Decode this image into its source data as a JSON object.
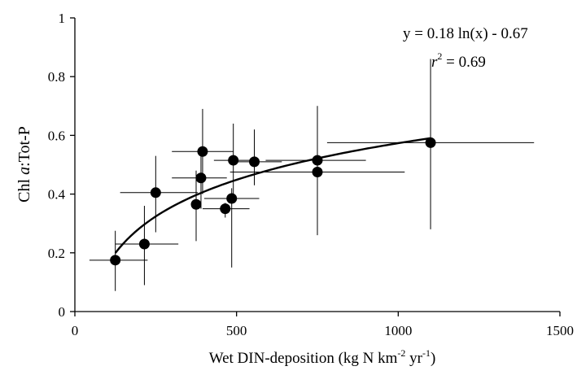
{
  "chart_data": {
    "type": "scatter",
    "xlabel_main": "Wet DIN-deposition (kg N km",
    "xlabel_exp1": "-2",
    "xlabel_mid": " yr",
    "xlabel_exp2": "-1",
    "xlabel_end": ")",
    "ylabel_italic": "a",
    "ylabel_pre": "Chl ",
    "ylabel_post": ":Tot-P",
    "xlim": [
      0,
      1500
    ],
    "ylim": [
      0,
      1
    ],
    "xticks": [
      0,
      500,
      1000,
      1500
    ],
    "yticks": [
      0,
      0.2,
      0.4,
      0.6,
      0.8,
      1
    ],
    "ytick_labels": [
      "0",
      "0.2",
      "0.4",
      "0.6",
      "0.8",
      "1"
    ],
    "xtick_labels": [
      "0",
      "500",
      "1000",
      "1500"
    ],
    "equation": "y = 0.18 ln(x) - 0.67",
    "r2_symbol": "r",
    "r2_exp": "2",
    "r2_value": " = 0.69",
    "fit": {
      "a": 0.18,
      "b": -0.67,
      "x_from": 125,
      "x_to": 1100
    },
    "points": [
      {
        "x": 125,
        "y": 0.175,
        "xerr": [
          45,
          225
        ],
        "yerr": [
          0.07,
          0.275
        ]
      },
      {
        "x": 215,
        "y": 0.23,
        "xerr": [
          125,
          320
        ],
        "yerr": [
          0.09,
          0.36
        ]
      },
      {
        "x": 250,
        "y": 0.405,
        "xerr": [
          140,
          380
        ],
        "yerr": [
          0.27,
          0.53
        ]
      },
      {
        "x": 375,
        "y": 0.365,
        "xerr": [
          0,
          0
        ],
        "yerr": [
          0.24,
          0.48
        ]
      },
      {
        "x": 390,
        "y": 0.455,
        "xerr": [
          300,
          470
        ],
        "yerr": [
          0.35,
          0.55
        ]
      },
      {
        "x": 395,
        "y": 0.545,
        "xerr": [
          300,
          490
        ],
        "yerr": [
          0.4,
          0.69
        ]
      },
      {
        "x": 465,
        "y": 0.35,
        "xerr": [
          395,
          540
        ],
        "yerr": [
          0.32,
          0.37
        ]
      },
      {
        "x": 485,
        "y": 0.385,
        "xerr": [
          400,
          570
        ],
        "yerr": [
          0.15,
          0.42
        ]
      },
      {
        "x": 490,
        "y": 0.515,
        "xerr": [
          430,
          560
        ],
        "yerr": [
          0.4,
          0.64
        ]
      },
      {
        "x": 555,
        "y": 0.51,
        "xerr": [
          500,
          640
        ],
        "yerr": [
          0.43,
          0.62
        ]
      },
      {
        "x": 750,
        "y": 0.515,
        "xerr": [
          590,
          900
        ],
        "yerr": [
          0.37,
          0.7
        ]
      },
      {
        "x": 750,
        "y": 0.475,
        "xerr": [
          480,
          1020
        ],
        "yerr": [
          0.26,
          0.59
        ]
      },
      {
        "x": 1100,
        "y": 0.575,
        "xerr": [
          780,
          1420
        ],
        "yerr": [
          0.28,
          0.86
        ]
      }
    ]
  }
}
